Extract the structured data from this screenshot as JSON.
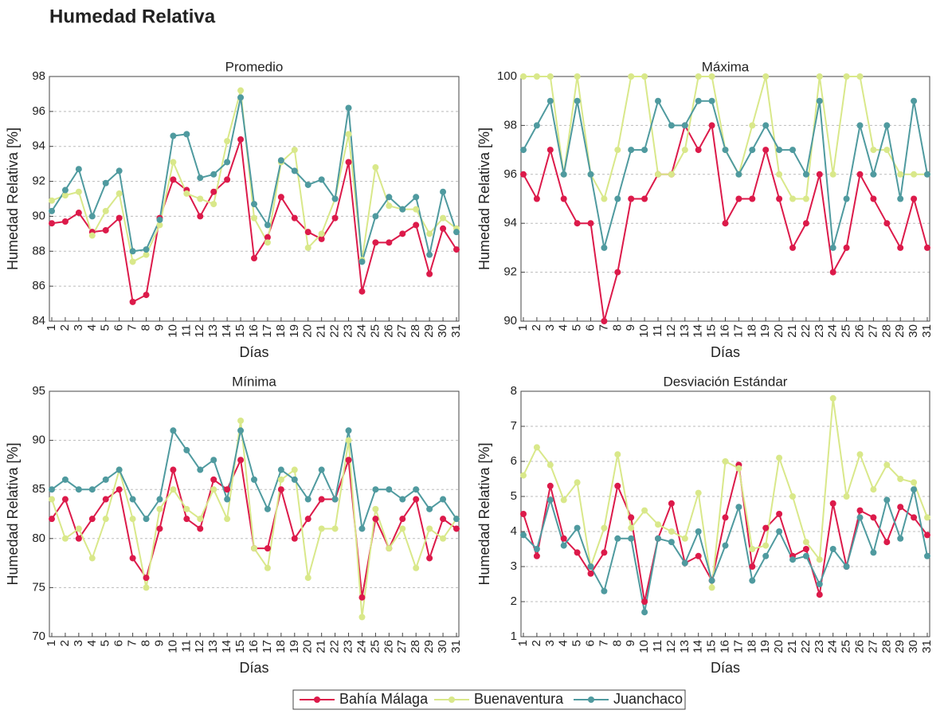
{
  "title": "Humedad Relativa",
  "chart_data": [
    {
      "type": "line",
      "title": "Promedio",
      "xlabel": "Días",
      "ylabel": "Humedad Relativa [%]",
      "categories": [
        "1",
        "2",
        "3",
        "4",
        "5",
        "6",
        "7",
        "8",
        "9",
        "10",
        "11",
        "12",
        "13",
        "14",
        "15",
        "16",
        "17",
        "18",
        "19",
        "20",
        "21",
        "22",
        "23",
        "24",
        "25",
        "26",
        "27",
        "28",
        "29",
        "30",
        "31"
      ],
      "ylim": [
        84,
        98
      ],
      "yticks": [
        84,
        86,
        88,
        90,
        92,
        94,
        96,
        98
      ],
      "grid": true,
      "series": [
        {
          "name": "Bahía Málaga",
          "color": "#dc1a4a",
          "values": [
            89.6,
            89.7,
            90.2,
            89.1,
            89.2,
            89.9,
            85.1,
            85.5,
            89.9,
            92.1,
            91.5,
            90.0,
            91.4,
            92.1,
            94.4,
            87.6,
            88.8,
            91.1,
            89.9,
            89.1,
            88.7,
            89.9,
            93.1,
            85.7,
            88.5,
            88.5,
            89.0,
            89.5,
            86.7,
            89.3,
            88.1
          ]
        },
        {
          "name": "Buenaventura",
          "color": "#d9e88a",
          "values": [
            90.9,
            91.2,
            91.4,
            88.9,
            90.3,
            91.3,
            87.4,
            87.8,
            89.5,
            93.1,
            91.3,
            91.0,
            90.7,
            94.3,
            97.2,
            89.9,
            88.5,
            93.1,
            93.8,
            88.2,
            89.0,
            91.0,
            94.7,
            87.5,
            92.8,
            90.6,
            90.4,
            90.4,
            89.0,
            89.9,
            89.3
          ]
        },
        {
          "name": "Juanchaco",
          "color": "#4f9a9f",
          "values": [
            90.3,
            91.5,
            92.7,
            90.0,
            91.9,
            92.6,
            88.0,
            88.1,
            89.8,
            94.6,
            94.7,
            92.2,
            92.4,
            93.1,
            96.8,
            90.7,
            89.5,
            93.2,
            92.6,
            91.8,
            92.1,
            91.0,
            96.2,
            87.4,
            90.0,
            91.1,
            90.4,
            91.1,
            87.8,
            91.4,
            89.1
          ]
        }
      ]
    },
    {
      "type": "line",
      "title": "Máxima",
      "xlabel": "Días",
      "ylabel": "Humedad Relativa [%]",
      "categories": [
        "1",
        "2",
        "3",
        "4",
        "5",
        "6",
        "7",
        "8",
        "9",
        "10",
        "11",
        "12",
        "13",
        "14",
        "15",
        "16",
        "17",
        "18",
        "19",
        "20",
        "21",
        "22",
        "23",
        "24",
        "25",
        "26",
        "27",
        "28",
        "29",
        "30",
        "31"
      ],
      "ylim": [
        90,
        100
      ],
      "yticks": [
        90,
        92,
        94,
        96,
        98,
        100
      ],
      "grid": true,
      "series": [
        {
          "color": "#dc1a4a",
          "values": [
            96,
            95,
            97,
            95,
            94,
            94,
            90,
            92,
            95,
            95,
            96,
            96,
            98,
            97,
            98,
            94,
            95,
            95,
            97,
            95,
            93,
            94,
            96,
            92,
            93,
            96,
            95,
            94,
            93,
            95,
            93
          ]
        },
        {
          "color": "#d9e88a",
          "values": [
            100,
            100,
            100,
            96,
            100,
            96,
            95,
            97,
            100,
            100,
            96,
            96,
            97,
            100,
            100,
            97,
            96,
            98,
            100,
            96,
            95,
            95,
            100,
            96,
            100,
            100,
            97,
            97,
            96,
            96,
            96
          ]
        },
        {
          "color": "#4f9a9f",
          "values": [
            97,
            98,
            99,
            96,
            99,
            96,
            93,
            95,
            97,
            97,
            99,
            98,
            98,
            99,
            99,
            97,
            96,
            97,
            98,
            97,
            97,
            96,
            99,
            93,
            95,
            98,
            96,
            98,
            95,
            99,
            96
          ]
        }
      ]
    },
    {
      "type": "line",
      "title": "Mínima",
      "xlabel": "Días",
      "ylabel": "Humedad Relativa [%]",
      "categories": [
        "1",
        "2",
        "3",
        "4",
        "5",
        "6",
        "7",
        "8",
        "9",
        "10",
        "11",
        "12",
        "13",
        "14",
        "15",
        "16",
        "17",
        "18",
        "19",
        "20",
        "21",
        "22",
        "23",
        "24",
        "25",
        "26",
        "27",
        "28",
        "29",
        "30",
        "31"
      ],
      "ylim": [
        70,
        95
      ],
      "yticks": [
        70,
        75,
        80,
        85,
        90,
        95
      ],
      "grid": true,
      "series": [
        {
          "color": "#dc1a4a",
          "values": [
            82,
            84,
            80,
            82,
            84,
            85,
            78,
            76,
            81,
            87,
            82,
            81,
            86,
            85,
            88,
            79,
            79,
            85,
            80,
            82,
            84,
            84,
            88,
            74,
            82,
            79,
            82,
            84,
            78,
            82,
            81
          ]
        },
        {
          "color": "#d9e88a",
          "values": [
            84,
            80,
            81,
            78,
            82,
            87,
            82,
            75,
            83,
            85,
            83,
            82,
            85,
            82,
            92,
            79,
            77,
            86,
            87,
            76,
            81,
            81,
            90,
            72,
            83,
            79,
            81,
            77,
            81,
            80,
            82
          ]
        },
        {
          "color": "#4f9a9f",
          "values": [
            85,
            86,
            85,
            85,
            86,
            87,
            84,
            82,
            84,
            91,
            89,
            87,
            88,
            84,
            91,
            86,
            83,
            87,
            86,
            84,
            87,
            84,
            91,
            81,
            85,
            85,
            84,
            85,
            83,
            84,
            82
          ]
        }
      ]
    },
    {
      "type": "line",
      "title": "Desviación Estándar",
      "xlabel": "Días",
      "ylabel": "Humedad Relativa [%]",
      "categories": [
        "1",
        "2",
        "3",
        "4",
        "5",
        "6",
        "7",
        "8",
        "9",
        "10",
        "11",
        "12",
        "13",
        "14",
        "15",
        "16",
        "17",
        "18",
        "19",
        "20",
        "21",
        "22",
        "23",
        "24",
        "25",
        "26",
        "27",
        "28",
        "29",
        "30",
        "31"
      ],
      "ylim": [
        1,
        8
      ],
      "yticks": [
        1,
        2,
        3,
        4,
        5,
        6,
        7,
        8
      ],
      "grid": true,
      "series": [
        {
          "color": "#dc1a4a",
          "values": [
            4.5,
            3.3,
            5.3,
            3.8,
            3.4,
            2.8,
            3.4,
            5.3,
            4.4,
            2.0,
            3.8,
            4.8,
            3.1,
            3.3,
            2.6,
            4.4,
            5.9,
            3.0,
            4.1,
            4.5,
            3.3,
            3.5,
            2.2,
            4.8,
            3.0,
            4.6,
            4.4,
            3.7,
            4.7,
            4.4,
            3.9
          ]
        },
        {
          "color": "#d9e88a",
          "values": [
            5.6,
            6.4,
            5.9,
            4.9,
            5.4,
            3.0,
            4.1,
            6.2,
            4.1,
            4.6,
            4.2,
            4.0,
            3.8,
            5.1,
            2.4,
            6.0,
            5.8,
            3.5,
            3.6,
            6.1,
            5.0,
            3.7,
            3.2,
            7.8,
            5.0,
            6.2,
            5.2,
            5.9,
            5.5,
            5.4,
            4.4
          ]
        },
        {
          "color": "#4f9a9f",
          "values": [
            3.9,
            3.5,
            4.9,
            3.6,
            4.1,
            3.0,
            2.3,
            3.8,
            3.8,
            1.7,
            3.8,
            3.7,
            3.1,
            4.0,
            2.6,
            3.6,
            4.7,
            2.6,
            3.3,
            4.0,
            3.2,
            3.3,
            2.5,
            3.5,
            3.0,
            4.4,
            3.4,
            4.9,
            3.8,
            5.2,
            3.3
          ]
        }
      ]
    }
  ]
}
